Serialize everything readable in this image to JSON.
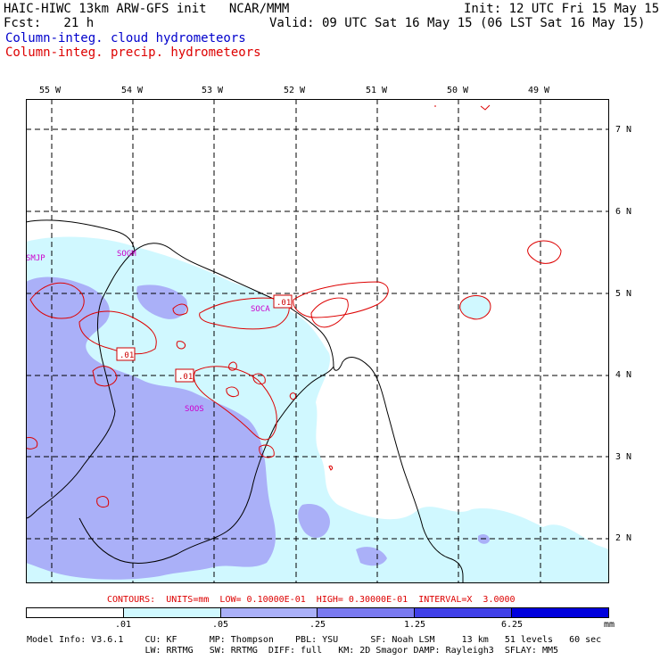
{
  "header": {
    "line1_left": "HAIC-HIWC 13km ARW-GFS init   NCAR/MMM",
    "line1_right": "Init: 12 UTC Fri 15 May 15",
    "line2_left": "Fcst:   21 h",
    "line2_right": "Valid: 09 UTC Sat 16 May 15 (06 LST Sat 16 May 15)",
    "line3": "Column-integ. cloud hydrometeors",
    "line4": "Column-integ. precip. hydrometeors"
  },
  "map": {
    "lon_labels": [
      "55 W",
      "54 W",
      "53 W",
      "52 W",
      "51 W",
      "50 W",
      "49 W"
    ],
    "lat_labels": [
      "7 N",
      "6 N",
      "5 N",
      "4 N",
      "3 N",
      "2 N"
    ],
    "stations": [
      "SMJP",
      "SOGM",
      "SOCA",
      "SOOS"
    ],
    "contour_box_labels": [
      ".01",
      ".01",
      ".01"
    ],
    "colors": {
      "light_cyan": "#d0f8ff",
      "light_blue": "#aab0f8",
      "medium_blue": "#7a7af0",
      "dark_blue": "#1010e0",
      "contour_red": "#dd0000",
      "station_magenta": "#cc00cc"
    }
  },
  "legend": {
    "contours_text": "CONTOURS:  UNITS=mm  LOW= 0.10000E-01  HIGH= 0.30000E-01  INTERVAL=X  3.0000",
    "bins": [
      "#ffffff",
      "#d0f8ff",
      "#aab0f8",
      "#7a7af0",
      "#4040e8",
      "#0000dd"
    ],
    "ticks": [
      ".01",
      ".05",
      ".25",
      "1.25",
      "6.25"
    ],
    "units": "mm"
  },
  "footer": {
    "line1": "Model Info: V3.6.1    CU: KF      MP: Thompson    PBL: YSU      SF: Noah LSM     13 km   51 levels   60 sec",
    "line2": "                      LW: RRTMG   SW: RRTMG  DIFF: full   KM: 2D Smagor DAMP: Rayleigh3  SFLAY: MM5"
  }
}
